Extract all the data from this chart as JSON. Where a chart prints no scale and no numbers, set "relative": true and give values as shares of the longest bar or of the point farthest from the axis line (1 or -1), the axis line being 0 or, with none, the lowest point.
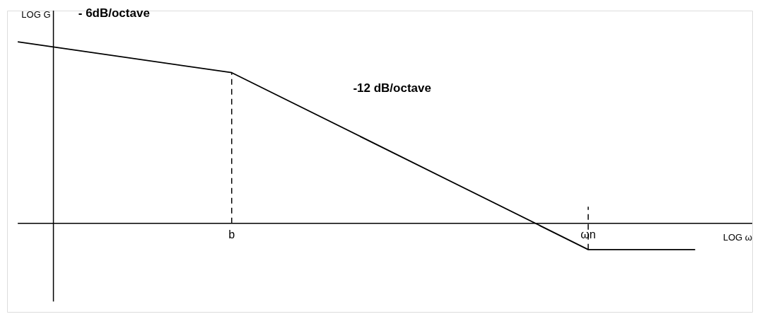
{
  "chart_data": {
    "type": "line",
    "relative": true,
    "xlabel": "LOG ω",
    "ylabel": "LOG G",
    "categories": [
      null,
      null,
      null,
      null,
      null,
      null,
      "b",
      null,
      null,
      null,
      null,
      null,
      null,
      null,
      null,
      null,
      "ωn",
      null,
      null,
      null
    ],
    "series": [
      {
        "color": "#000000",
        "values": [
          1,
          null,
          null,
          null,
          null,
          null,
          0.83,
          null,
          null,
          null,
          null,
          null,
          null,
          null,
          null,
          null,
          -0.145,
          null,
          null,
          -0.145
        ]
      }
    ],
    "ref_lines": [
      {
        "axis": "x",
        "value": "b",
        "line_style": "dashed",
        "color": "#000000"
      },
      {
        "axis": "x",
        "value": "ωn",
        "line_style": "dashed",
        "color": "#000000"
      }
    ],
    "annotations": [
      "- 6dB/octave",
      "-12 dB/octave"
    ],
    "marker": "none",
    "line_style": "solid"
  }
}
